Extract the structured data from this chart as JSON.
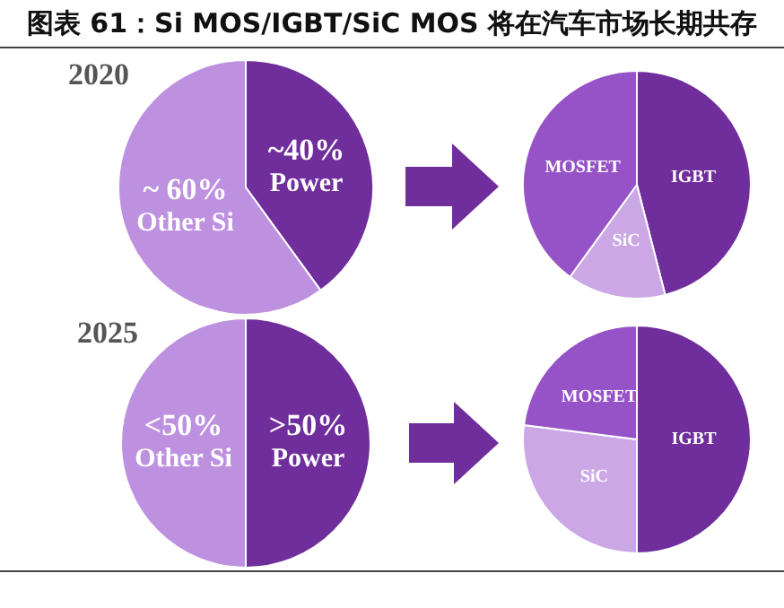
{
  "chart_data": [
    {
      "type": "pie",
      "title": "图表 61：Si MOS/IGBT/SiC MOS 将在汽车市场长期共存",
      "subtitle": "2020",
      "categories": [
        "Power",
        "Other Si"
      ],
      "values": [
        40,
        60
      ],
      "value_labels": [
        "~40%",
        "~ 60%"
      ],
      "colors": [
        "#6f2e9c",
        "#bd91e0"
      ]
    },
    {
      "type": "pie",
      "categories": [
        "IGBT",
        "SiC",
        "MOSFET"
      ],
      "values": [
        46,
        14,
        40
      ],
      "colors": [
        "#6f2e9c",
        "#cba7e6",
        "#9653c7"
      ]
    },
    {
      "type": "pie",
      "subtitle": "2025",
      "categories": [
        "Power",
        "Other Si"
      ],
      "values": [
        50,
        50
      ],
      "value_labels": [
        ">50%",
        "<50%"
      ],
      "colors": [
        "#6f2e9c",
        "#bd91e0"
      ]
    },
    {
      "type": "pie",
      "categories": [
        "IGBT",
        "SiC",
        "MOSFET"
      ],
      "values": [
        50,
        27,
        23
      ],
      "colors": [
        "#6f2e9c",
        "#cba7e6",
        "#9653c7"
      ]
    }
  ]
}
